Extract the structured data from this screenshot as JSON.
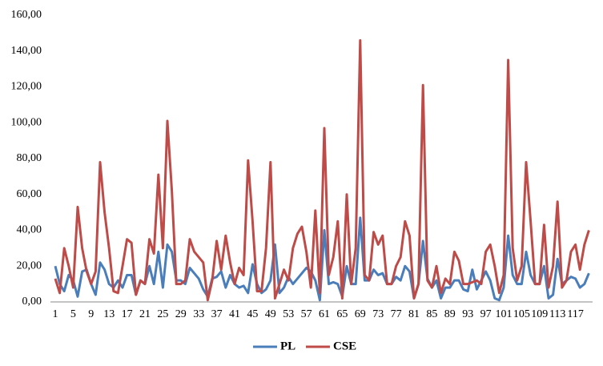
{
  "chart_data": {
    "type": "line",
    "categories": [
      "1",
      null,
      null,
      null,
      "5",
      null,
      null,
      null,
      "9",
      null,
      null,
      null,
      "13",
      null,
      null,
      null,
      "17",
      null,
      null,
      null,
      "21",
      null,
      null,
      null,
      "25",
      null,
      null,
      null,
      "29",
      null,
      null,
      null,
      "33",
      null,
      null,
      null,
      "37",
      null,
      null,
      null,
      "41",
      null,
      null,
      null,
      "45",
      null,
      null,
      null,
      "49",
      null,
      null,
      null,
      "53",
      null,
      null,
      null,
      "57",
      null,
      null,
      null,
      "61",
      null,
      null,
      null,
      "65",
      null,
      null,
      null,
      "69",
      null,
      null,
      null,
      "73",
      null,
      null,
      null,
      "77",
      null,
      null,
      null,
      "81",
      null,
      null,
      null,
      "85",
      null,
      null,
      null,
      "89",
      null,
      null,
      null,
      "93",
      null,
      null,
      null,
      "97",
      null,
      null,
      null,
      "101",
      null,
      null,
      null,
      "105",
      null,
      null,
      null,
      "109",
      null,
      null,
      null,
      "113",
      null,
      null,
      null,
      "117",
      null,
      null,
      null
    ],
    "series": [
      {
        "name": "PL",
        "color": "#4a7ebb",
        "values": [
          20,
          10,
          6,
          15,
          12,
          3,
          17,
          18,
          10,
          4,
          22,
          18,
          10,
          8,
          12,
          8,
          15,
          15,
          4,
          12,
          10,
          20,
          10,
          28,
          8,
          32,
          28,
          12,
          12,
          10,
          19,
          16,
          13,
          7,
          3,
          13,
          14,
          17,
          8,
          15,
          10,
          8,
          9,
          5,
          21,
          10,
          5,
          7,
          12,
          32,
          5,
          8,
          14,
          10,
          13,
          16,
          19,
          17,
          12,
          1,
          40,
          10,
          11,
          10,
          3,
          20,
          10,
          10,
          47,
          12,
          12,
          18,
          15,
          16,
          10,
          10,
          14,
          12,
          20,
          17,
          2,
          10,
          34,
          13,
          8,
          12,
          2,
          8,
          8,
          12,
          12,
          7,
          6,
          18,
          7,
          12,
          17,
          12,
          2,
          1,
          8,
          37,
          15,
          10,
          10,
          28,
          15,
          10,
          10,
          20,
          2,
          4,
          24,
          10,
          12,
          14,
          13,
          8,
          10,
          16
        ]
      },
      {
        "name": "CSE",
        "color": "#be4b48",
        "values": [
          13,
          5,
          30,
          20,
          8,
          53,
          30,
          17,
          10,
          17,
          78,
          50,
          30,
          6,
          5,
          20,
          35,
          33,
          4,
          12,
          10,
          35,
          27,
          71,
          30,
          101,
          62,
          10,
          10,
          12,
          35,
          28,
          25,
          22,
          1,
          12,
          34,
          18,
          37,
          22,
          10,
          19,
          15,
          79,
          45,
          6,
          6,
          30,
          78,
          2,
          10,
          18,
          12,
          30,
          38,
          42,
          28,
          8,
          51,
          5,
          97,
          15,
          25,
          45,
          2,
          60,
          10,
          30,
          146,
          15,
          12,
          39,
          32,
          37,
          10,
          10,
          20,
          25,
          45,
          37,
          2,
          10,
          121,
          12,
          8,
          20,
          5,
          13,
          10,
          28,
          23,
          10,
          10,
          11,
          12,
          10,
          28,
          32,
          20,
          5,
          15,
          135,
          30,
          12,
          20,
          78,
          45,
          10,
          10,
          43,
          8,
          20,
          56,
          8,
          12,
          28,
          32,
          18,
          32,
          40
        ]
      }
    ],
    "ylim": [
      0,
      160
    ],
    "yticks": [
      {
        "value": 0,
        "label": "0,00"
      },
      {
        "value": 20,
        "label": "20,00"
      },
      {
        "value": 40,
        "label": "40,00"
      },
      {
        "value": 60,
        "label": "60,00"
      },
      {
        "value": 80,
        "label": "80,00"
      },
      {
        "value": 100,
        "label": "100,00"
      },
      {
        "value": 120,
        "label": "120,00"
      },
      {
        "value": 140,
        "label": "140,00"
      },
      {
        "value": 160,
        "label": "160,00"
      }
    ],
    "grid": false,
    "legend": "bottom"
  }
}
